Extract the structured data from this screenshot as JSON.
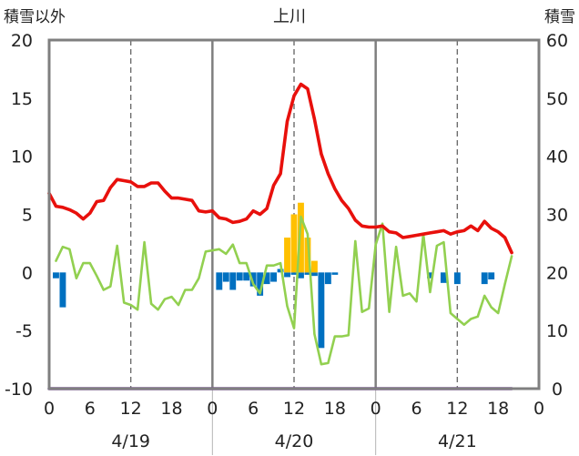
{
  "chart_data": {
    "type": "bar+line",
    "title": "上川",
    "left_axis_label": "積雪以外",
    "right_axis_label": "積雪",
    "left_ylim": [
      -10,
      20
    ],
    "right_ylim": [
      0,
      60
    ],
    "left_ticks": [
      -10,
      -5,
      0,
      5,
      10,
      15,
      20
    ],
    "right_ticks": [
      0,
      10,
      20,
      30,
      40,
      50,
      60
    ],
    "x_hour_range": [
      0,
      72
    ],
    "hour_tick_labels": [
      "0",
      "6",
      "12",
      "18",
      "0",
      "6",
      "12",
      "18",
      "0",
      "6",
      "12",
      "18",
      "0"
    ],
    "day_labels": [
      "4/19",
      "4/20",
      "4/21"
    ],
    "grid": "dashed vertical lines at hour 12 of each day; solid lines at day boundaries",
    "colors": {
      "red_line": "#e8100c",
      "green_line": "#92d050",
      "blue_bars": "#0070c0",
      "orange_bars": "#ffc000",
      "baseline": "#7030a0",
      "frame": "#7f7f7f"
    },
    "series": [
      {
        "name": "red line",
        "axis": "left",
        "style": "line",
        "x": [
          0,
          1,
          2,
          3,
          4,
          5,
          6,
          7,
          8,
          9,
          10,
          11,
          12,
          13,
          14,
          15,
          16,
          17,
          18,
          19,
          20,
          21,
          22,
          23,
          24,
          25,
          26,
          27,
          28,
          29,
          30,
          31,
          32,
          33,
          34,
          35,
          36,
          37,
          38,
          39,
          40,
          41,
          42,
          43,
          44,
          45,
          46,
          47,
          48,
          49,
          50,
          51,
          52,
          53,
          54,
          55,
          56,
          57,
          58,
          59,
          60,
          61,
          62,
          63,
          64,
          65,
          66,
          67,
          68
        ],
        "values": [
          6.8,
          5.7,
          5.6,
          5.4,
          5.1,
          4.6,
          5.1,
          6.1,
          6.2,
          7.3,
          8.0,
          7.9,
          7.8,
          7.4,
          7.4,
          7.7,
          7.7,
          7.0,
          6.4,
          6.4,
          6.3,
          6.2,
          5.3,
          5.2,
          5.3,
          4.7,
          4.6,
          4.3,
          4.4,
          4.6,
          5.3,
          5.0,
          5.5,
          7.5,
          8.5,
          13.0,
          15.2,
          16.2,
          15.8,
          13.2,
          10.2,
          8.5,
          7.2,
          6.2,
          5.5,
          4.5,
          4.0,
          3.9,
          3.9,
          4.0,
          3.5,
          3.4,
          3.0,
          3.1,
          3.2,
          3.3,
          3.4,
          3.5,
          3.6,
          3.3,
          3.5,
          3.6,
          4.0,
          3.6,
          4.4,
          3.8,
          3.5,
          3.0,
          1.7
        ]
      },
      {
        "name": "green line",
        "axis": "left",
        "style": "line",
        "x": [
          1,
          2,
          3,
          4,
          5,
          6,
          7,
          8,
          9,
          10,
          11,
          12,
          13,
          14,
          15,
          16,
          17,
          18,
          19,
          20,
          21,
          22,
          23,
          25,
          26,
          27,
          28,
          29,
          30,
          31,
          32,
          33,
          34,
          35,
          36,
          37,
          38,
          39,
          40,
          41,
          42,
          43,
          44,
          45,
          46,
          47,
          48,
          49,
          50,
          51,
          52,
          53,
          54,
          55,
          56,
          57,
          58,
          59,
          60,
          61,
          62,
          63,
          64,
          65,
          66,
          67,
          68
        ],
        "values": [
          1.0,
          2.2,
          2.0,
          -0.5,
          0.8,
          0.8,
          -0.3,
          -1.5,
          -1.2,
          2.3,
          -2.6,
          -2.8,
          -3.2,
          2.6,
          -2.7,
          -3.2,
          -2.3,
          -2.1,
          -2.8,
          -1.5,
          -1.5,
          -0.5,
          1.8,
          2.0,
          1.6,
          2.4,
          0.8,
          0.8,
          -1.0,
          -1.8,
          0.6,
          0.6,
          0.8,
          -2.9,
          -4.8,
          4.8,
          3.3,
          -5.3,
          -7.9,
          -7.8,
          -5.5,
          -5.5,
          -5.4,
          2.7,
          -3.4,
          -3.1,
          2.4,
          4.2,
          -3.4,
          2.2,
          -2.0,
          -1.8,
          -2.5,
          3.3,
          -1.7,
          2.3,
          2.6,
          -3.5,
          -4.0,
          -4.5,
          -4.0,
          -3.8,
          -2.0,
          -3.0,
          -3.5,
          -1.0,
          1.4
        ]
      },
      {
        "name": "blue bars",
        "axis": "left",
        "style": "bar",
        "x": [
          1,
          2,
          25,
          26,
          27,
          28,
          29,
          30,
          31,
          32,
          33,
          34,
          35,
          36,
          37,
          38,
          39,
          40,
          41,
          42,
          56,
          58,
          60,
          64,
          65
        ],
        "values": [
          -0.5,
          -3.0,
          -1.5,
          -0.8,
          -1.5,
          -0.7,
          -0.7,
          -1.2,
          -2.0,
          -1.0,
          -0.8,
          0.3,
          -0.4,
          -0.2,
          -0.5,
          -0.2,
          -0.3,
          -6.5,
          -1.0,
          -0.2,
          -0.5,
          -0.9,
          -1.0,
          -1.0,
          -0.6
        ]
      },
      {
        "name": "orange bars",
        "axis": "left",
        "style": "bar",
        "x": [
          35,
          36,
          37,
          38,
          39
        ],
        "values": [
          3.0,
          5.0,
          6.0,
          3.0,
          1.0
        ]
      },
      {
        "name": "purple line",
        "axis": "right",
        "style": "line",
        "x": [
          0,
          68
        ],
        "values": [
          0,
          0
        ]
      }
    ]
  }
}
